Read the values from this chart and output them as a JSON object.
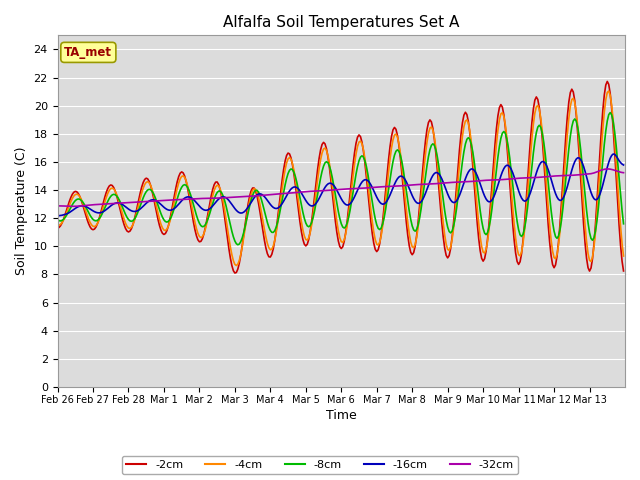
{
  "title": "Alfalfa Soil Temperatures Set A",
  "xlabel": "Time",
  "ylabel": "Soil Temperature (C)",
  "ylim": [
    0,
    25
  ],
  "yticks": [
    0,
    2,
    4,
    6,
    8,
    10,
    12,
    14,
    16,
    18,
    20,
    22,
    24
  ],
  "xtick_labels": [
    "Feb 26",
    "Feb 27",
    "Feb 28",
    "Mar 1",
    "Mar 2",
    "Mar 3",
    "Mar 4",
    "Mar 5",
    "Mar 6",
    "Mar 7",
    "Mar 8",
    "Mar 9",
    "Mar 10",
    "Mar 11",
    "Mar 12",
    "Mar 13"
  ],
  "background_color": "#dcdcdc",
  "grid_color": "#ffffff",
  "fig_background": "#ffffff",
  "line_colors": {
    "-2cm": "#cc0000",
    "-4cm": "#ff8800",
    "-8cm": "#00bb00",
    "-16cm": "#0000bb",
    "-32cm": "#aa00aa"
  },
  "legend_label": "TA_met",
  "legend_box_facecolor": "#ffff99",
  "legend_box_edgecolor": "#999900",
  "legend_text_color": "#990000",
  "title_fontsize": 11,
  "label_fontsize": 9,
  "tick_fontsize": 8,
  "xtick_fontsize": 7,
  "linewidth": 1.2
}
